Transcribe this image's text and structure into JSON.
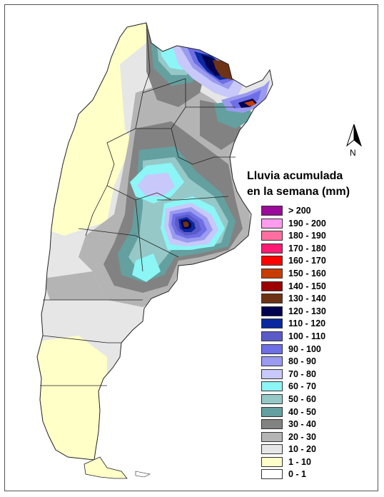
{
  "map": {
    "title_line1": "Lluvia acumulada",
    "title_line2": "en la semana (mm)",
    "north_label": "N",
    "legend": [
      {
        "label": "> 200",
        "color": "#9b0a9b"
      },
      {
        "label": "190 - 200",
        "color": "#ff9cf0"
      },
      {
        "label": "180 - 190",
        "color": "#ff6ea0"
      },
      {
        "label": "170 - 180",
        "color": "#ff1a74"
      },
      {
        "label": "160 - 170",
        "color": "#ff0000"
      },
      {
        "label": "150 - 160",
        "color": "#c83c00"
      },
      {
        "label": "140 - 150",
        "color": "#9c0000"
      },
      {
        "label": "130 - 140",
        "color": "#6e3214"
      },
      {
        "label": "120 - 130",
        "color": "#000050"
      },
      {
        "label": "110 - 120",
        "color": "#0a28a0"
      },
      {
        "label": "100 - 110",
        "color": "#5a5ac8"
      },
      {
        "label": "90 - 100",
        "color": "#6e6ee6"
      },
      {
        "label": "80 - 90",
        "color": "#9a9af0"
      },
      {
        "label": "70 - 80",
        "color": "#c8c8fa"
      },
      {
        "label": "60 - 70",
        "color": "#8cf5f5"
      },
      {
        "label": "50 - 60",
        "color": "#96c8c8"
      },
      {
        "label": "40 - 50",
        "color": "#64a0a0"
      },
      {
        "label": "30 - 40",
        "color": "#828282"
      },
      {
        "label": "20 - 30",
        "color": "#b4b4b4"
      },
      {
        "label": "10 - 20",
        "color": "#e6e6e6"
      },
      {
        "label": "1 - 10",
        "color": "#ffffc8"
      },
      {
        "label": "0 - 1",
        "color": "#ffffff"
      }
    ]
  }
}
